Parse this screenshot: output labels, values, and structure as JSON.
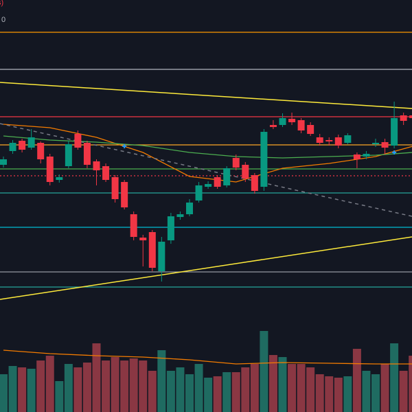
{
  "chart_data": {
    "type": "candlestick",
    "title": "s)",
    "subtitle": "0",
    "ylim": [
      0,
      600
    ],
    "up_color": "#089981",
    "down_color": "#f23645",
    "volume_up_color": "#1f6b61",
    "volume_down_color": "#8a3743",
    "open": [
      360,
      380,
      395,
      385,
      392,
      372,
      338,
      358,
      405,
      392,
      365,
      358,
      342,
      335,
      288,
      254,
      262,
      205,
      250,
      284,
      288,
      308,
      328,
      342,
      330,
      370,
      360,
      345,
      328,
      418,
      418,
      427,
      425,
      418,
      400,
      396,
      400,
      392,
      375,
      372,
      390,
      393,
      388,
      432,
      432
    ],
    "high": [
      372,
      396,
      398,
      412,
      394,
      376,
      346,
      395,
      410,
      395,
      368,
      362,
      345,
      338,
      292,
      258,
      265,
      255,
      290,
      292,
      310,
      335,
      336,
      345,
      358,
      375,
      364,
      348,
      412,
      425,
      435,
      436,
      428,
      422,
      405,
      400,
      404,
      406,
      378,
      380,
      398,
      398,
      452,
      436,
      436
    ],
    "low": [
      356,
      376,
      378,
      382,
      362,
      330,
      334,
      355,
      382,
      355,
      330,
      335,
      305,
      295,
      250,
      212,
      205,
      190,
      245,
      280,
      285,
      305,
      325,
      325,
      327,
      352,
      335,
      318,
      322,
      412,
      415,
      418,
      406,
      402,
      388,
      388,
      384,
      390,
      355,
      368,
      386,
      375,
      384,
      418,
      424
    ],
    "close": [
      368,
      392,
      382,
      400,
      368,
      335,
      342,
      390,
      385,
      360,
      352,
      338,
      310,
      298,
      255,
      250,
      210,
      248,
      285,
      288,
      305,
      330,
      332,
      328,
      355,
      356,
      340,
      322,
      408,
      415,
      428,
      422,
      410,
      405,
      392,
      394,
      388,
      403,
      368,
      376,
      392,
      385,
      428,
      424,
      428
    ],
    "volume": [
      55,
      67,
      65,
      63,
      75,
      82,
      45,
      70,
      65,
      72,
      100,
      75,
      80,
      75,
      78,
      75,
      60,
      90,
      60,
      65,
      55,
      70,
      50,
      52,
      58,
      58,
      65,
      70,
      118,
      83,
      80,
      70,
      70,
      65,
      55,
      52,
      50,
      52,
      92,
      60,
      55,
      70,
      100,
      60,
      82
    ],
    "moving_averages": [
      {
        "color": "#f57c00",
        "x": [
          0,
          5,
          10,
          15,
          20,
          25,
          30,
          35,
          40,
          44
        ],
        "values": [
          419,
          414,
          400,
          378,
          343,
          335,
          355,
          362,
          372,
          387
        ]
      },
      {
        "color": "#4caf50",
        "x": [
          0,
          5,
          10,
          15,
          20,
          25,
          30,
          35,
          40,
          44
        ],
        "values": [
          402,
          396,
          393,
          388,
          378,
          372,
          370,
          372,
          374,
          378
        ]
      },
      {
        "color": "#f57c00",
        "x": [
          0,
          5,
          10,
          15,
          20,
          25,
          30,
          35,
          40,
          44
        ],
        "values": [
          90,
          85,
          82,
          80,
          76,
          70,
          72,
          71,
          70,
          70
        ]
      }
    ],
    "levels": [
      {
        "value": 553,
        "color": "#ff9800"
      },
      {
        "value": 499,
        "color": "#b2b5be"
      },
      {
        "value": 430,
        "color": "#f23645"
      },
      {
        "value": 389,
        "color": "#ffa726"
      },
      {
        "value": 354,
        "color": "#4caf50"
      },
      {
        "value": 344,
        "color": "#f23645",
        "dashed": true
      },
      {
        "value": 319,
        "color": "#26a69a"
      },
      {
        "value": 269,
        "color": "#00bcd4"
      },
      {
        "value": 204,
        "color": "#9598a1"
      },
      {
        "value": 182,
        "color": "#26a69a"
      }
    ],
    "trendlines": [
      {
        "color": "#ffeb3b",
        "values": [
          480,
          442
        ]
      },
      {
        "color": "#ffeb3b",
        "values": [
          164,
          255
        ]
      },
      {
        "color": "#787b86",
        "values": [
          420,
          285
        ],
        "dashed": true
      }
    ],
    "markers": [
      {
        "x": 13,
        "value": 387,
        "color": "#2196f3"
      },
      {
        "x": 42,
        "value": 378,
        "color": "#2196f3"
      }
    ]
  }
}
